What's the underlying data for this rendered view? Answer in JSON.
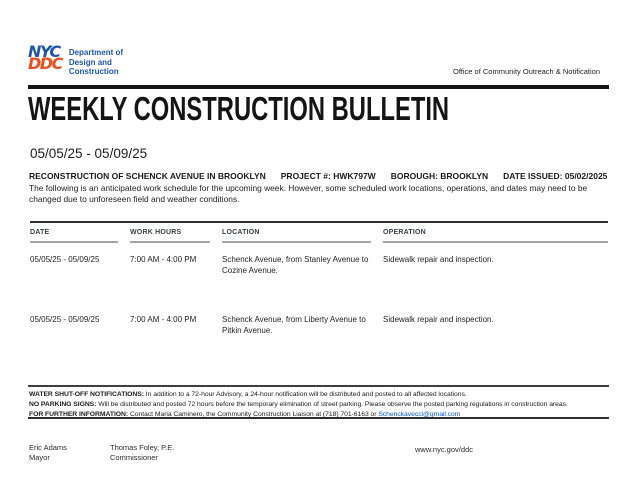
{
  "logo": {
    "nyc": "NYC",
    "ddc": "DDC",
    "dept_lines": [
      "Department of",
      "Design and",
      "Construction"
    ]
  },
  "office": "Office of Community Outreach & Notification",
  "title": "WEEKLY CONSTRUCTION BULLETIN",
  "week_range": "05/05/25 - 05/09/25",
  "project": {
    "name": "RECONSTRUCTION OF SCHENCK AVENUE IN BROOKLYN",
    "project_number": "PROJECT #: HWK797W",
    "borough": "BOROUGH: BROOKLYN",
    "date_issued": "DATE ISSUED: 05/02/2025"
  },
  "disclaimer": "The following is an anticipated work schedule for the upcoming week. However, some scheduled work locations, operations, and dates may need to be changed due to unforeseen field and weather conditions.",
  "table": {
    "headers": [
      "DATE",
      "WORK HOURS",
      "LOCATION",
      "OPERATION"
    ],
    "rows": [
      {
        "date": "05/05/25 - 05/09/25",
        "hours": "7:00 AM - 4:00 PM",
        "location": "Schenck Avenue, from Stanley Avenue to Cozine Avenue.",
        "operation": "Sidewalk repair and inspection."
      },
      {
        "date": "05/05/25 - 05/09/25",
        "hours": "7:00 AM - 4:00 PM",
        "location": "Schenck Avenue, from Liberty Avenue to Pitkin Avenue.",
        "operation": "Sidewalk repair and inspection."
      }
    ]
  },
  "notes": [
    {
      "label": "WATER SHUT-OFF NOTIFICATIONS:",
      "text": " In addition to a 72-hour Advisory, a 24-hour notification will be distributed and posted to all affected locations."
    },
    {
      "label": "NO PARKING SIGNS:",
      "text": " Will be distributed and posted 72 hours before the temporary elimination of street parking. Please observe the posted parking regulations in construction areas."
    },
    {
      "label": "FOR FURTHER INFORMATION:",
      "text": " Contact Maria Caminero, the Community Construction Liaison at (718) 701-6163 or ",
      "link": "Schenckaveccl@gmail.com"
    }
  ],
  "footer": {
    "mayor_name": "Eric Adams",
    "mayor_title": "Mayor",
    "commissioner_name": "Thomas Foley, P.E.",
    "commissioner_title": "Commissioner",
    "website": "www.nyc.gov/ddc"
  },
  "colors": {
    "nyc_blue": "#1f56a7",
    "ddc_orange": "#e8501e",
    "link_blue": "#0957c3"
  }
}
